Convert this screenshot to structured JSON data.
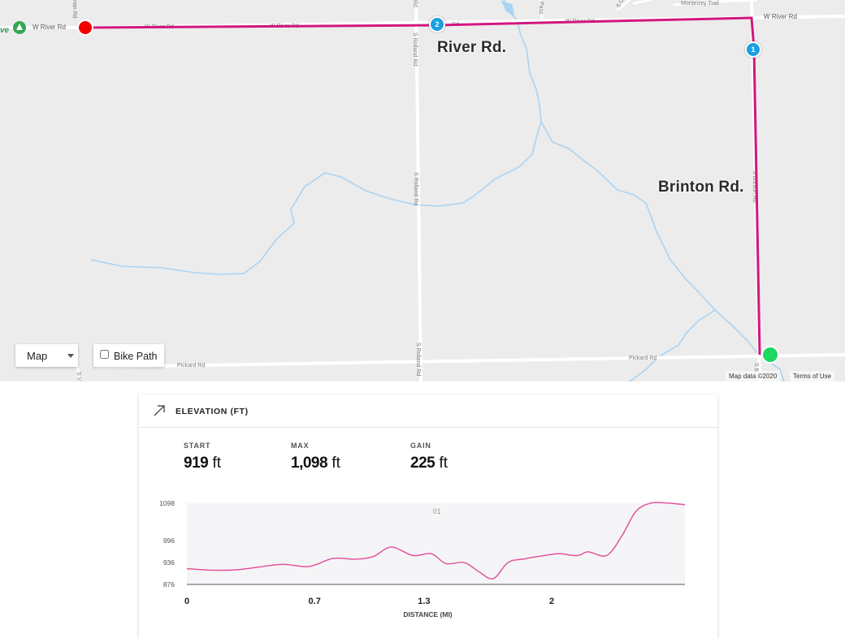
{
  "map": {
    "street_labels": {
      "river": "River Rd.",
      "brinton": "Brinton Rd."
    },
    "road_names": {
      "w_river_1": "W River Rd",
      "w_river_2": "W River Rd",
      "w_river_3": "W River Rd",
      "w_river_4": "W River Rd",
      "w_river_5": "W River Rd",
      "rolland_1": "S Rolland Rd",
      "rolland_2": "S Rolland Rd",
      "rolland_3": "S Rolland Rd",
      "rolland_top": "Rd",
      "pickard_1": "Pickard Rd",
      "pickard_2": "Pickard Rd",
      "monterrey": "Monterrey Trail",
      "pass": "Pass",
      "chip": "S Chi",
      "brinton_small": "S Brinton Rd",
      "rd_top": "Rd",
      "s_b": "S B",
      "s_v": "S V",
      "nan_rd": "nan Rd"
    },
    "park_label": "ve",
    "park_road": "W River Rd",
    "waypoints": [
      "1",
      "2"
    ],
    "controls": {
      "map_type": "Map",
      "bike_path": "Bike Path"
    },
    "attribution": {
      "data": "Map data ©2020",
      "terms": "Terms of Use"
    },
    "colors": {
      "route": "#d3167f",
      "water": "#aad3f2",
      "start": "#1ed760",
      "end": "#f40000",
      "waypoint": "#1aa0e0"
    }
  },
  "elevation": {
    "title": "ELEVATION (FT)",
    "stats": [
      {
        "label": "START",
        "value": "919",
        "unit": "ft"
      },
      {
        "label": "MAX",
        "value": "1,098",
        "unit": "ft"
      },
      {
        "label": "GAIN",
        "value": "225",
        "unit": "ft"
      }
    ],
    "chart_data": {
      "type": "area",
      "xlabel": "DISTANCE (MI)",
      "ylabel": "",
      "y_ticks": [
        876,
        936,
        996,
        1098
      ],
      "x_ticks": [
        "0",
        "0.7",
        "1.3",
        "2"
      ],
      "xlim": [
        0,
        2.73
      ],
      "ylim": [
        876,
        1098
      ],
      "waypoint_label": "01",
      "waypoint_x": 1.37,
      "series": [
        {
          "x": [
            0,
            0.13,
            0.27,
            0.4,
            0.53,
            0.67,
            0.8,
            0.92,
            1.02,
            1.12,
            1.24,
            1.34,
            1.42,
            1.52,
            1.6,
            1.68,
            1.76,
            1.85,
            1.96,
            2.04,
            2.14,
            2.2,
            2.3,
            2.38,
            2.46,
            2.54,
            2.62,
            2.73
          ],
          "y": [
            919,
            915,
            916,
            924,
            931,
            925,
            947,
            945,
            952,
            978,
            955,
            960,
            933,
            936,
            911,
            892,
            936,
            946,
            955,
            960,
            955,
            965,
            955,
            1005,
            1075,
            1098,
            1099,
            1094
          ]
        }
      ]
    }
  }
}
